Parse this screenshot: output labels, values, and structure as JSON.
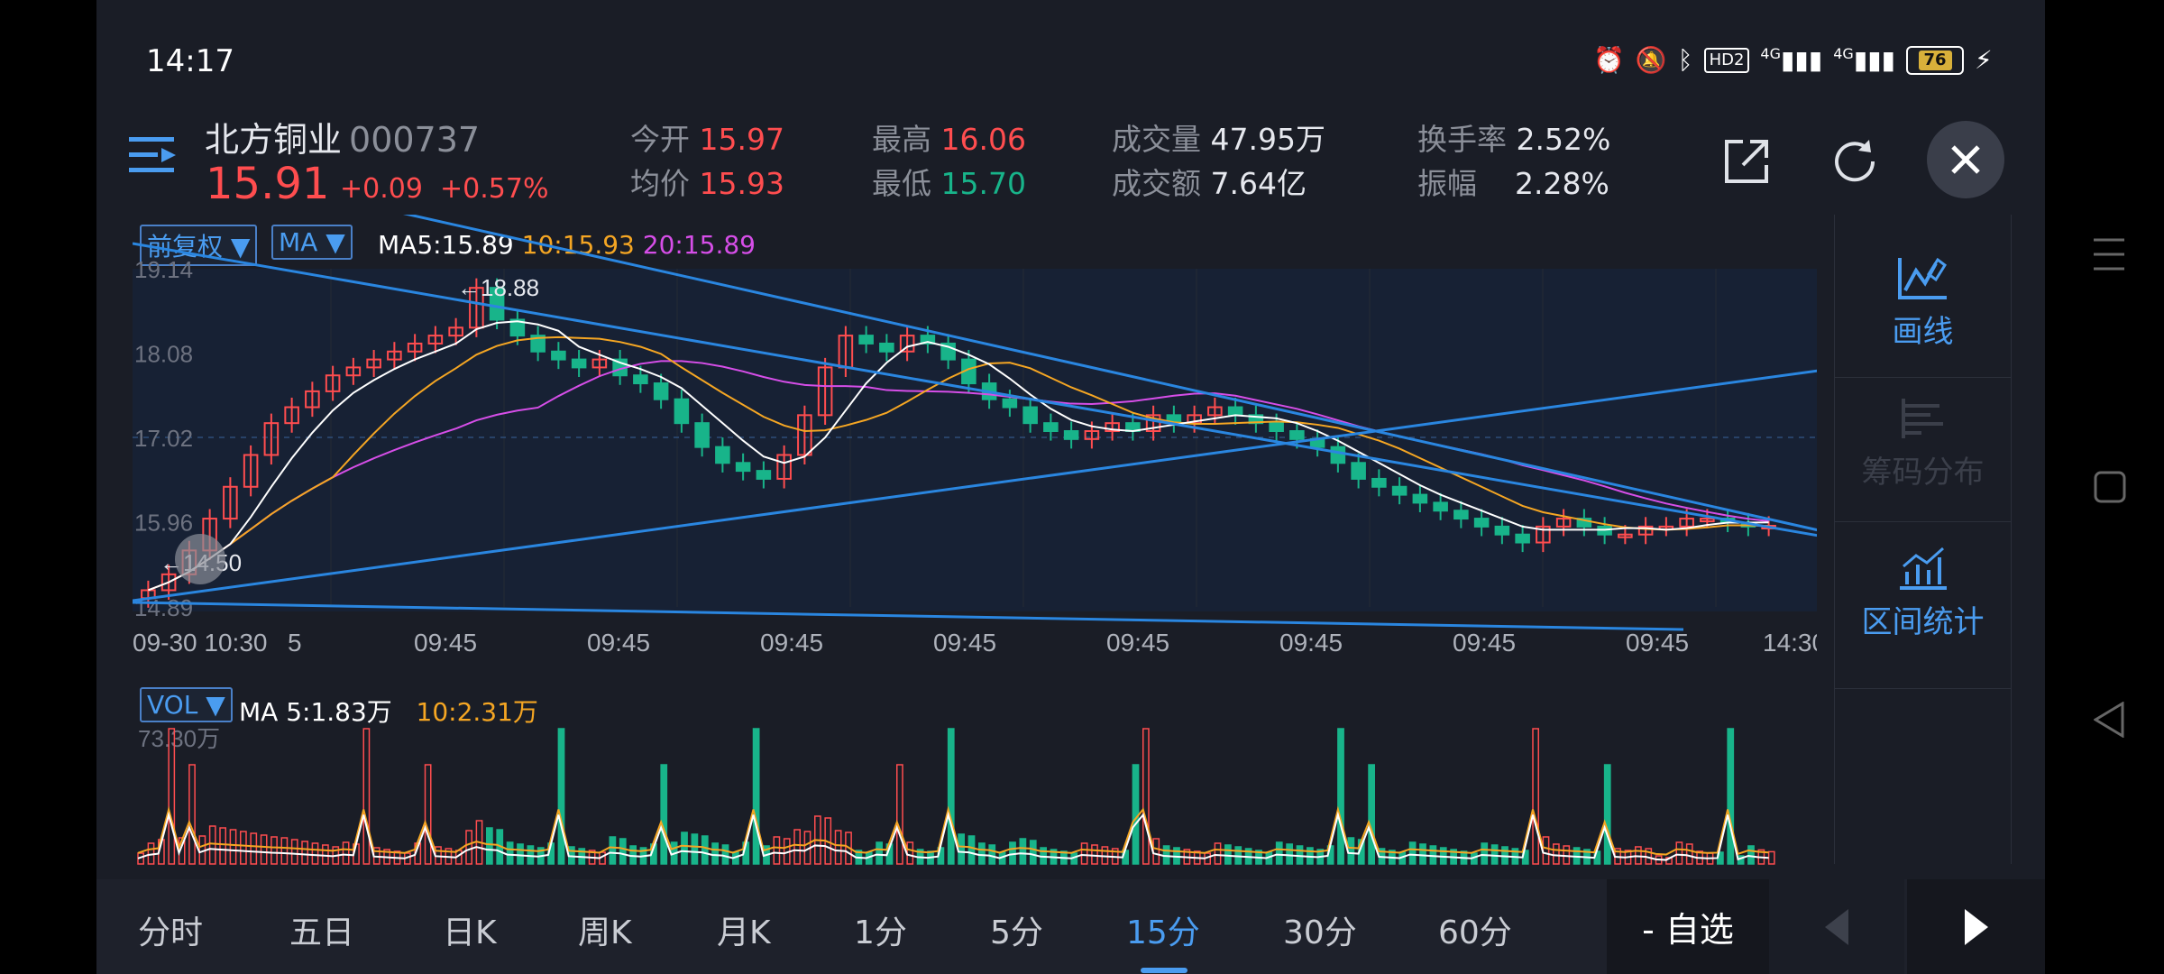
{
  "status_bar": {
    "time": "14:17",
    "hd_badge": "HD2",
    "signal_1": "4G",
    "signal_2": "4G",
    "battery": "76"
  },
  "header": {
    "stock_name": "北方铜业",
    "stock_code": "000737",
    "price": "15.91",
    "change": "+0.09",
    "change_pct": "+0.57%",
    "stats": {
      "open_label": "今开",
      "open": "15.97",
      "avg_label": "均价",
      "avg": "15.93",
      "high_label": "最高",
      "high": "16.06",
      "low_label": "最低",
      "low": "15.70",
      "volume_label": "成交量",
      "volume": "47.95万",
      "amount_label": "成交额",
      "amount": "7.64亿",
      "turnover_label": "换手率",
      "turnover": "2.52%",
      "amplitude_label": "振幅",
      "amplitude": "2.28%"
    }
  },
  "chart_controls": {
    "adjust": "前复权",
    "indicator": "MA",
    "ma5": "MA5:15.89",
    "ma10": "10:15.93",
    "ma20": "20:15.89",
    "vol_selector": "VOL",
    "vol_ma5": "MA 5:1.83万",
    "vol_ma10": "10:2.31万"
  },
  "colors": {
    "up": "#ff4d4f",
    "down": "#18b48a",
    "accent": "#4a9cf0",
    "ma5": "#ffffff",
    "ma10": "#f5a623",
    "ma20": "#d64ee8"
  },
  "chart_data": {
    "type": "candlestick",
    "interval": "15分",
    "y_ticks": [
      "19.14",
      "18.08",
      "17.02",
      "15.96",
      "14.89"
    ],
    "ylim": [
      14.89,
      19.14
    ],
    "max_label": "18.88",
    "min_label": "14.50",
    "x_ticks": [
      "09-30 10:30",
      "5",
      "09:45",
      "09:45",
      "09:45",
      "09:45",
      "09:45",
      "09:45",
      "09:45",
      "09:45",
      "14:30"
    ],
    "close": [
      15.1,
      15.3,
      15.6,
      16.0,
      16.4,
      16.8,
      17.2,
      17.4,
      17.6,
      17.8,
      17.9,
      18.0,
      18.1,
      18.2,
      18.3,
      18.4,
      18.9,
      18.5,
      18.3,
      18.1,
      18.0,
      17.9,
      18.0,
      17.8,
      17.7,
      17.5,
      17.2,
      16.9,
      16.7,
      16.6,
      16.5,
      16.8,
      17.3,
      17.9,
      18.3,
      18.2,
      18.1,
      18.3,
      18.2,
      18.0,
      17.7,
      17.5,
      17.4,
      17.2,
      17.1,
      17.0,
      17.1,
      17.2,
      17.1,
      17.3,
      17.2,
      17.3,
      17.4,
      17.3,
      17.2,
      17.1,
      17.0,
      16.9,
      16.7,
      16.5,
      16.4,
      16.3,
      16.2,
      16.1,
      16.0,
      15.9,
      15.8,
      15.7,
      15.9,
      16.0,
      15.9,
      15.8,
      15.8,
      15.9,
      15.9,
      16.0,
      16.0,
      15.95,
      15.9,
      15.91
    ],
    "volume_ylim_label": "73.30万"
  },
  "tools": {
    "draw": "画线",
    "chips": "筹码分布",
    "range_stats": "区间统计"
  },
  "tabs": [
    "分时",
    "五日",
    "日K",
    "周K",
    "月K",
    "1分",
    "5分",
    "15分",
    "30分",
    "60分"
  ],
  "active_tab": "15分",
  "watchlist_button": "- 自选"
}
